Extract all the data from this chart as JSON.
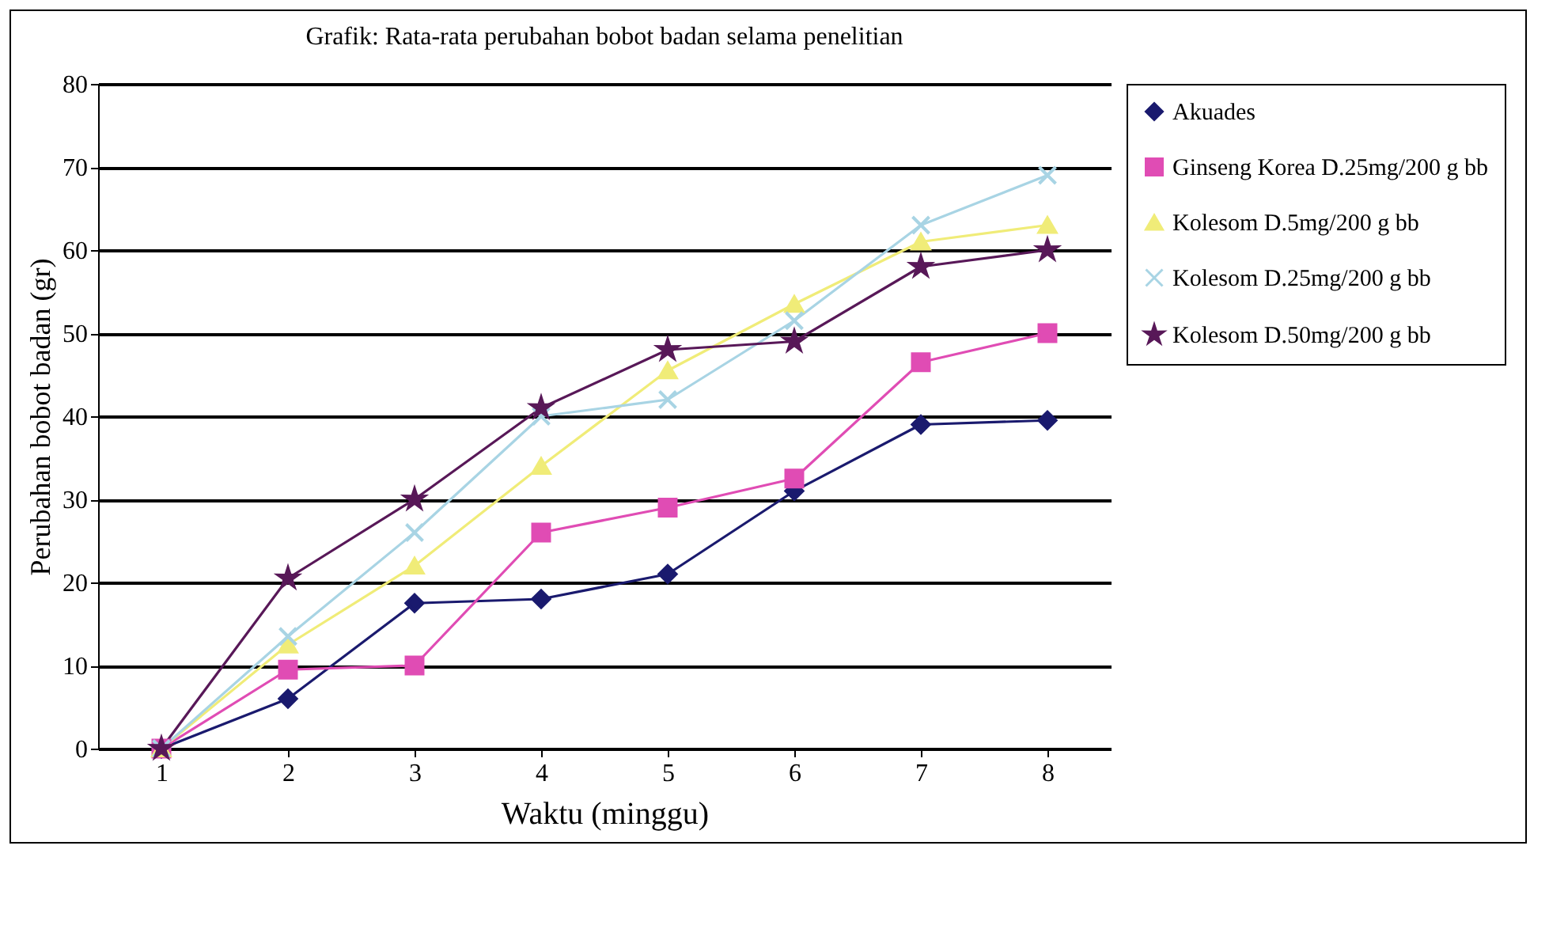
{
  "chart_data": {
    "type": "line",
    "title": "Grafik: Rata-rata perubahan bobot badan selama penelitian",
    "xlabel": "Waktu (minggu)",
    "ylabel": "Perubahan bobot badan (gr)",
    "categories": [
      "1",
      "2",
      "3",
      "4",
      "5",
      "6",
      "7",
      "8"
    ],
    "series": [
      {
        "name": "Akuades",
        "color": "#1a1a6e",
        "marker": "diamond",
        "values": [
          0,
          6,
          17.5,
          18,
          21,
          31,
          39,
          39.5
        ]
      },
      {
        "name": "Ginseng Korea D.25mg/200 g bb",
        "color": "#e04cb4",
        "marker": "square",
        "values": [
          0,
          9.5,
          10,
          26,
          29,
          32.5,
          46.5,
          50
        ]
      },
      {
        "name": "Kolesom D.5mg/200 g bb",
        "color": "#f0ec78",
        "marker": "triangle",
        "values": [
          0,
          12.5,
          22,
          34,
          45.5,
          53.5,
          61,
          63
        ]
      },
      {
        "name": "Kolesom D.25mg/200 g bb",
        "color": "#a8d4e4",
        "marker": "cross",
        "values": [
          0,
          13.5,
          26,
          40,
          42,
          51.5,
          63,
          69
        ]
      },
      {
        "name": "Kolesom D.50mg/200 g bb",
        "color": "#581858",
        "marker": "star",
        "values": [
          0,
          20.5,
          30,
          41,
          48,
          49,
          58,
          60
        ]
      }
    ],
    "ylim": [
      0,
      80
    ],
    "yticks": [
      0,
      10,
      20,
      30,
      40,
      50,
      60,
      70,
      80
    ],
    "grid": "y",
    "legend": "right",
    "line_style": "solid"
  }
}
